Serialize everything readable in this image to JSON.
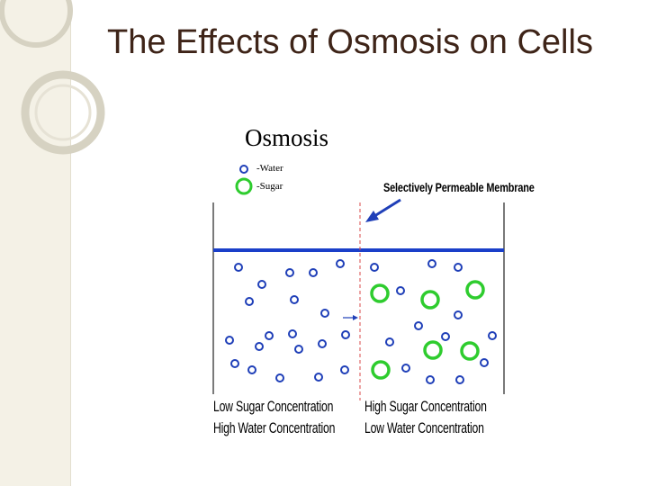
{
  "slide": {
    "title": "The Effects of Osmosis on Cells"
  },
  "diagram": {
    "title": "Osmosis",
    "legend": [
      {
        "icon": "water-molecule-icon",
        "label": "-Water"
      },
      {
        "icon": "sugar-molecule-icon",
        "label": "-Sugar"
      }
    ],
    "membrane_label": "Selectively Permeable Membrane",
    "left_side": {
      "line1": "Low Sugar Concentration",
      "line2": "High Water Concentration"
    },
    "right_side": {
      "line1": "High Sugar Concentration",
      "line2": "Low Water Concentration"
    },
    "colors": {
      "water_level": "#1a3fc9",
      "molecule_water": "#1f3fb8",
      "molecule_sugar": "#2ecc2e",
      "membrane": "#d94a4a",
      "title_text": "#3e2418"
    }
  }
}
